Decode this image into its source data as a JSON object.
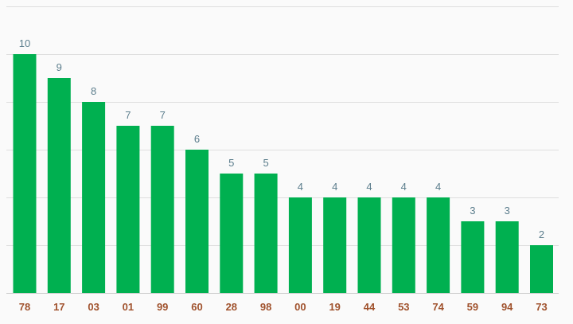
{
  "chart_data": {
    "type": "bar",
    "title": "",
    "xlabel": "",
    "ylabel": "",
    "categories": [
      "78",
      "17",
      "03",
      "01",
      "99",
      "60",
      "28",
      "98",
      "00",
      "19",
      "44",
      "53",
      "74",
      "59",
      "94",
      "73"
    ],
    "values": [
      10,
      9,
      8,
      7,
      7,
      6,
      5,
      5,
      4,
      4,
      4,
      4,
      4,
      3,
      3,
      2
    ],
    "ylim": [
      0,
      12
    ],
    "grid": true,
    "legend": "none",
    "show_data_labels": true,
    "colors": {
      "bar": "#00b050",
      "data_label": "#5b7d8c",
      "tick_label": "#a0522d",
      "grid": "#dedede",
      "background": "#fafafa"
    }
  }
}
